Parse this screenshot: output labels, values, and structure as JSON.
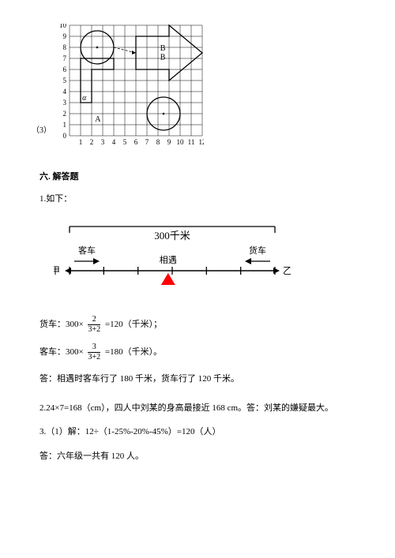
{
  "grid": {
    "label3": "（3）",
    "cell": 14,
    "width_cells": 12,
    "height_cells": 10,
    "y_labels": [
      "0",
      "1",
      "2",
      "3",
      "4",
      "5",
      "6",
      "7",
      "8",
      "9",
      "10"
    ],
    "x_labels": [
      "1",
      "2",
      "3",
      "4",
      "5",
      "6",
      "7",
      "8",
      "9",
      "10",
      "11",
      "12"
    ],
    "line_color": "#000000",
    "circle1": {
      "cx_cell": 2.5,
      "cy_from_top_cell": 2,
      "r_cell": 1.5
    },
    "circle2": {
      "cx_cell": 8.5,
      "cy_from_top_cell": 8,
      "r_cell": 1.5
    },
    "label_A": "A",
    "label_B": "B",
    "arrow_dash": true,
    "angle_sym": "α"
  },
  "section6": {
    "title": "六. 解答题",
    "q1": {
      "title": "1.如下：",
      "diagram": {
        "distance_label": "300千米",
        "bus_label": "客车",
        "truck_label": "货车",
        "meet_label": "相遇",
        "left_end": "甲",
        "right_end": "乙",
        "ticks": 7,
        "triangle_pos": 0.48,
        "triangle_color": "#ff0000",
        "arrow_color": "#000000"
      },
      "calc_truck_prefix": "货车：300×",
      "calc_truck_num": "2",
      "calc_truck_den": "3+2",
      "calc_truck_suffix": "=120（千米）；",
      "calc_bus_prefix": "客车：300×",
      "calc_bus_num": "3",
      "calc_bus_den": "3+2",
      "calc_bus_suffix": "=180（千米）。",
      "answer": "答：相遇时客车行了 180 千米，货车行了 120 千米。"
    },
    "q2": "2.24×7=168（cm），四人中刘某的身高最接近 168 cm。答：刘某的嫌疑最大。",
    "q3_line1": "3.（1）解：12÷（1-25%-20%-45%）=120（人）",
    "q3_answer": "答：六年级一共有 120 人。"
  }
}
